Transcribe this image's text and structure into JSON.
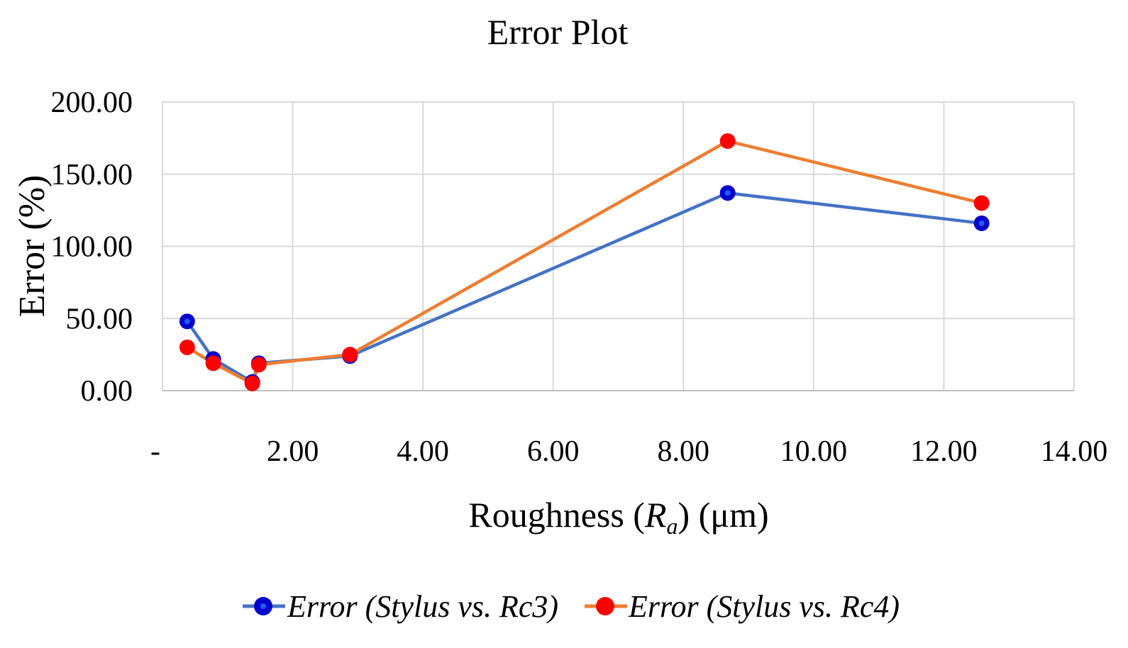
{
  "chart_data": {
    "type": "line",
    "title": "Error Plot",
    "xlabel_main": "Roughness (",
    "xlabel_var": "R",
    "xlabel_sub": "a",
    "xlabel_tail": ") (μm)",
    "ylabel": "Error (%)",
    "xlim": [
      0,
      14
    ],
    "ylim": [
      0,
      200
    ],
    "x_ticks": [
      0,
      2,
      4,
      6,
      8,
      10,
      12,
      14
    ],
    "x_tick_labels": [
      "-",
      "2.00",
      "4.00",
      "6.00",
      "8.00",
      "10.00",
      "12.00",
      "14.00"
    ],
    "y_ticks": [
      0,
      50,
      100,
      150,
      200
    ],
    "y_tick_labels": [
      "0.00",
      "50.00",
      "100.00",
      "150.00",
      "200.00"
    ],
    "grid": true,
    "legend_position": "bottom",
    "series": [
      {
        "name": "Error (Stylus vs. Rc3)",
        "line_color": "#4472C4",
        "marker_color": "#0000CC",
        "marker_center": "#1E5BFF",
        "points": [
          [
            0.38,
            48
          ],
          [
            0.78,
            22
          ],
          [
            1.38,
            6
          ],
          [
            1.48,
            19
          ],
          [
            2.88,
            24
          ],
          [
            8.68,
            137
          ],
          [
            12.58,
            116
          ]
        ]
      },
      {
        "name": "Error (Stylus vs. Rc4)",
        "line_color": "#ED7D31",
        "marker_color": "#FF0000",
        "marker_center": "#FF0000",
        "points": [
          [
            0.38,
            30
          ],
          [
            0.78,
            19
          ],
          [
            1.38,
            5
          ],
          [
            1.48,
            18
          ],
          [
            2.88,
            25
          ],
          [
            8.68,
            173
          ],
          [
            12.58,
            130
          ]
        ]
      }
    ]
  }
}
